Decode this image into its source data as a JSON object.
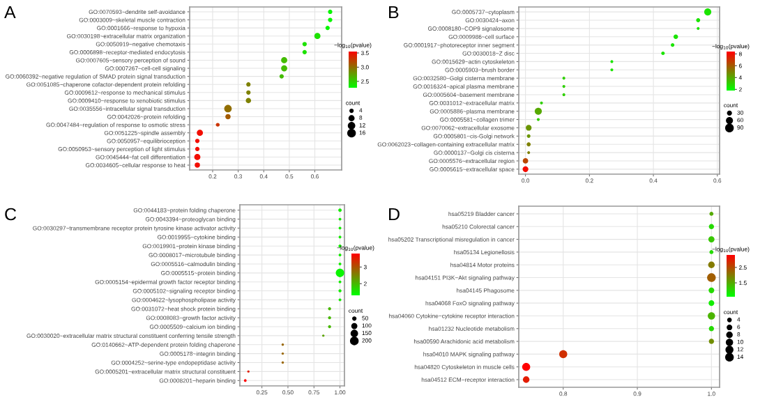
{
  "chart_data": [
    {
      "type": "bubble",
      "title": "A",
      "orientation": "horizontal",
      "grid": true,
      "legend_title": "count",
      "clabel": "−log$_{10}$(pvalue)",
      "categories": [
        "GO:0070593~dendrite self-avoidance",
        "GO:0003009~skeletal muscle contraction",
        "GO:0001666~response to hypoxia",
        "GO:0030198~extracellular matrix organization",
        "GO:0050919~negative chemotaxis",
        "GO:0006898~receptor-mediated endocytosis",
        "GO:0007605~sensory perception of sound",
        "GO:0007267~cell-cell signaling",
        "GO:0060392~negative regulation of SMAD protein signal transduction",
        "GO:0051085~chaperone cofactor-dependent protein refolding",
        "GO:0009612~response to mechanical stimulus",
        "GO:0009410~response to xenobiotic stimulus",
        "GO:0035556~intracellular signal transduction",
        "GO:0042026~protein refolding",
        "GO:0047484~regulation of response to osmotic stress",
        "GO:0051225~spindle assembly",
        "GO:0050957~equilibrioception",
        "GO:0050953~sensory perception of light stimulus",
        "GO:0045444~fat cell differentiation",
        "GO:0034605~cellular response to heat"
      ],
      "values": [
        0.66,
        0.66,
        0.65,
        0.61,
        0.56,
        0.56,
        0.48,
        0.48,
        0.47,
        0.34,
        0.34,
        0.34,
        0.26,
        0.26,
        0.22,
        0.15,
        0.14,
        0.14,
        0.14,
        0.14
      ],
      "sizes": [
        4,
        4,
        4,
        8,
        4,
        4,
        8,
        8,
        4,
        4,
        4,
        6,
        12,
        6,
        3,
        8,
        4,
        4,
        8,
        6
      ],
      "cvalues": [
        2.3,
        2.3,
        2.3,
        2.4,
        2.4,
        2.4,
        2.6,
        2.6,
        2.6,
        2.9,
        2.9,
        2.9,
        3.0,
        3.1,
        3.3,
        3.5,
        3.5,
        3.5,
        3.5,
        3.5
      ],
      "size_legend": [
        4,
        8,
        12,
        16
      ],
      "clim": [
        2.25,
        3.57
      ],
      "cticks": [
        2.5,
        {
          "value": 3,
          "label": "3.0"
        },
        3.5
      ],
      "xlim": [
        0.11,
        0.705
      ],
      "xticks": [
        0.2,
        0.3,
        0.4,
        0.5,
        0.6
      ]
    },
    {
      "type": "bubble",
      "title": "B",
      "orientation": "horizontal",
      "grid": true,
      "legend_title": "count",
      "clabel": "−log$_{10}$(pvalue)",
      "categories": [
        "GO:0005737~cytoplasm",
        "GO:0030424~axon",
        "GO:0008180~COP9 signalosome",
        "GO:0009986~cell surface",
        "GO:0001917~photoreceptor inner segment",
        "GO:0030018~Z disc",
        "GO:0015629~actin cytoskeleton",
        "GO:0005903~brush border",
        "GO:0032580~Golgi cisterna membrane",
        "GO:0016324~apical plasma membrane",
        "GO:0005604~basement membrane",
        "GO:0031012~extracellular matrix",
        "GO:0005886~plasma membrane",
        "GO:0005581~collagen trimer",
        "GO:0070062~extracellular exosome",
        "GO:0005801~cis-Golgi network",
        "GO:0062023~collagen-containing extracellular matrix",
        "GO:0000137~Golgi cis cisterna",
        "GO:0005576~extracellular region",
        "GO:0005615~extracellular space"
      ],
      "values": [
        0.57,
        0.54,
        0.54,
        0.47,
        0.46,
        0.43,
        0.27,
        0.27,
        0.12,
        0.12,
        0.12,
        0.05,
        0.04,
        0.04,
        0.01,
        0.01,
        0.01,
        0.01,
        0.0,
        0.0
      ],
      "sizes": [
        60,
        20,
        10,
        25,
        15,
        15,
        10,
        10,
        10,
        10,
        10,
        10,
        60,
        10,
        40,
        15,
        20,
        10,
        35,
        40
      ],
      "cvalues": [
        2.5,
        2.5,
        2.5,
        2.5,
        2.5,
        2.5,
        2.5,
        2.5,
        3,
        3,
        3,
        3,
        4,
        3,
        4.5,
        4.5,
        5,
        5,
        6.5,
        8
      ],
      "size_legend": [
        30,
        60,
        90
      ],
      "clim": [
        1.8,
        8.3
      ],
      "cticks": [
        2,
        4,
        6,
        8
      ],
      "xlim": [
        -0.021,
        0.607
      ],
      "xticks": [
        {
          "value": 0.0,
          "label": "0.0"
        },
        {
          "value": 0.2,
          "label": "0.2"
        },
        {
          "value": 0.4,
          "label": "0.4"
        },
        {
          "value": 0.6,
          "label": "0.6"
        }
      ]
    },
    {
      "type": "bubble",
      "title": "C",
      "orientation": "horizontal",
      "grid": true,
      "legend_title": "count",
      "clabel": "−log$_{10}$(pvalue)",
      "categories": [
        "GO:0044183~protein folding chaperone",
        "GO:0043394~proteoglycan binding",
        "GO:0030297~transmembrane receptor protein tyrosine kinase activator activity",
        "GO:0019955~cytokine binding",
        "GO:0019901~protein kinase binding",
        "GO:0008017~microtubule binding",
        "GO:0005516~calmodulin binding",
        "GO:0005515~protein binding",
        "GO:0005154~epidermal growth factor receptor binding",
        "GO:0005102~signaling receptor binding",
        "GO:0004622~lysophospholipase activity",
        "GO:0031072~heat shock protein binding",
        "GO:0008083~growth factor activity",
        "GO:0005509~calcium ion binding",
        "GO:0030020~extracellular matrix structural constituent conferring tensile strength",
        "GO:0140662~ATP-dependent protein folding chaperone",
        "GO:0005178~integrin binding",
        "GO:0004252~serine-type endopeptidase activity",
        "GO:0005201~extracellular matrix structural constituent",
        "GO:0008201~heparin binding"
      ],
      "values": [
        1.0,
        1.0,
        1.0,
        1.0,
        1.0,
        1.0,
        1.0,
        1.0,
        1.0,
        1.0,
        1.0,
        0.9,
        0.9,
        0.9,
        0.84,
        0.45,
        0.45,
        0.45,
        0.12,
        0.09
      ],
      "sizes": [
        30,
        20,
        20,
        20,
        25,
        20,
        20,
        190,
        20,
        25,
        20,
        25,
        25,
        25,
        15,
        15,
        15,
        15,
        15,
        20
      ],
      "cvalues": [
        1.5,
        1.5,
        1.5,
        1.5,
        1.5,
        1.5,
        1.5,
        1.4,
        1.5,
        1.5,
        1.5,
        2.0,
        2.0,
        2.0,
        2.2,
        2.8,
        2.8,
        2.8,
        3.5,
        3.8
      ],
      "size_legend": [
        50,
        100,
        150,
        200
      ],
      "clim": [
        1.3,
        3.8
      ],
      "cticks": [
        2,
        3
      ],
      "xlim": [
        0.038,
        1.043
      ],
      "xticks": [
        {
          "value": 0.25,
          "label": "0.25"
        },
        {
          "value": 0.5,
          "label": "0.50"
        },
        {
          "value": 0.75,
          "label": "0.75"
        },
        {
          "value": 1.0,
          "label": "1.00"
        }
      ]
    },
    {
      "type": "bubble",
      "title": "D",
      "orientation": "horizontal",
      "grid": true,
      "legend_title": "count",
      "clabel": "−log$_{10}$(pvalue)",
      "categories": [
        "hsa05219 Bladder cancer",
        "hsa05210 Colorectal cancer",
        "hsa05202 Transcriptional misregulation in cancer",
        "hsa05134 Legionellosis",
        "hsa04814 Motor proteins",
        "hsa04151 PI3K−Akt signaling pathway",
        "hsa04145 Phagosome",
        "hsa04068 FoxO signaling pathway",
        "hsa04060 Cytokine−cytokine receptor interaction",
        "hsa01232 Nucleotide metabolism",
        "hsa00590 Arachidonic acid metabolism",
        "hsa04010 MAPK signaling pathway",
        "hsa04820 Cytoskeleton in muscle cells",
        "hsa04512 ECM−receptor interaction"
      ],
      "values": [
        1.0,
        1.0,
        1.0,
        1.0,
        1.0,
        1.0,
        1.0,
        1.0,
        1.0,
        1.0,
        1.0,
        0.8,
        0.75,
        0.75
      ],
      "sizes": [
        3,
        5,
        7,
        3,
        8,
        14,
        6,
        6,
        10,
        5,
        5,
        12,
        12,
        8
      ],
      "cvalues": [
        1.5,
        1.0,
        1.2,
        1.0,
        2.0,
        2.3,
        1.0,
        0.8,
        1.4,
        1.0,
        1.8,
        2.8,
        3.3,
        3.0
      ],
      "size_legend": [
        4,
        6,
        8,
        10,
        12,
        14
      ],
      "clim": [
        0.6,
        3.3
      ],
      "cticks": [
        1.5,
        2.5
      ],
      "xlim": [
        0.74,
        1.011
      ],
      "xticks": [
        0.8,
        0.9,
        {
          "value": 1,
          "label": "1.0"
        }
      ]
    }
  ]
}
